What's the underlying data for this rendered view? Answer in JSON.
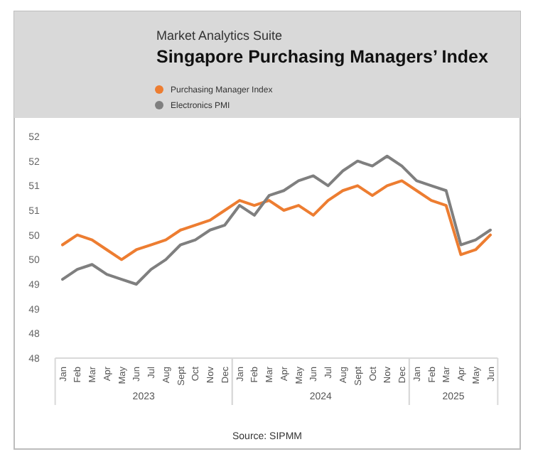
{
  "chart_data": {
    "type": "line",
    "title": "Singapore Purchasing Managers’ Index",
    "subtitle": "Market Analytics Suite",
    "categories": [
      "Jan",
      "Feb",
      "Mar",
      "Apr",
      "May",
      "Jun",
      "Jul",
      "Aug",
      "Sept",
      "Oct",
      "Nov",
      "Dec",
      "Jan",
      "Feb",
      "Mar",
      "Apr",
      "May",
      "Jun",
      "Jul",
      "Aug",
      "Sept",
      "Oct",
      "Nov",
      "Dec",
      "Jan",
      "Feb",
      "Mar",
      "Apr",
      "May",
      "Jun"
    ],
    "series": [
      {
        "name": "Purchasing Manager Index",
        "color": "#ed7d31",
        "values": [
          49.8,
          50.0,
          49.9,
          49.7,
          49.5,
          49.7,
          49.8,
          49.9,
          50.1,
          50.2,
          50.3,
          50.5,
          50.7,
          50.6,
          50.7,
          50.5,
          50.6,
          50.4,
          50.7,
          50.9,
          51.0,
          50.8,
          51.0,
          51.1,
          50.9,
          50.7,
          50.6,
          49.6,
          49.7,
          50.0
        ]
      },
      {
        "name": "Electronics PMI",
        "color": "#7f7f7f",
        "values": [
          49.1,
          49.3,
          49.4,
          49.2,
          49.1,
          49.0,
          49.3,
          49.5,
          49.8,
          49.9,
          50.1,
          50.2,
          50.6,
          50.4,
          50.8,
          50.9,
          51.1,
          51.2,
          51.0,
          51.3,
          51.5,
          51.4,
          51.6,
          51.4,
          51.1,
          51.0,
          50.9,
          49.8,
          49.9,
          50.1
        ]
      }
    ],
    "ylim": [
      47.5,
      52
    ],
    "yticks": [
      {
        "value": 47.5,
        "label": "48"
      },
      {
        "value": 48,
        "label": "48"
      },
      {
        "value": 48.5,
        "label": "49"
      },
      {
        "value": 49,
        "label": "49"
      },
      {
        "value": 49.5,
        "label": "50"
      },
      {
        "value": 50,
        "label": "50"
      },
      {
        "value": 50.5,
        "label": "51"
      },
      {
        "value": 51,
        "label": "51"
      },
      {
        "value": 51.5,
        "label": "52"
      },
      {
        "value": 52,
        "label": "52"
      }
    ],
    "legend": "top",
    "marker": "none",
    "line_style": "solid",
    "annotations": [
      "2023",
      "2024",
      "2025",
      "Source: SIPMM"
    ]
  }
}
